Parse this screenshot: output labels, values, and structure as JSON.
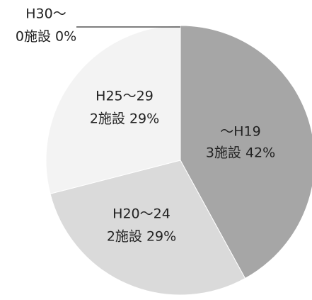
{
  "chart_data": {
    "type": "pie",
    "categories": [
      "～H19",
      "H20～24",
      "H25～29",
      "H30～"
    ],
    "values": [
      42,
      29,
      29,
      0
    ],
    "value_labels": [
      "3施設 42%",
      "2施設 29%",
      "2施設 29%",
      "0施設 0%"
    ],
    "colors": [
      "#a6a6a6",
      "#dadada",
      "#f3f3f3",
      "#ffffff"
    ]
  }
}
